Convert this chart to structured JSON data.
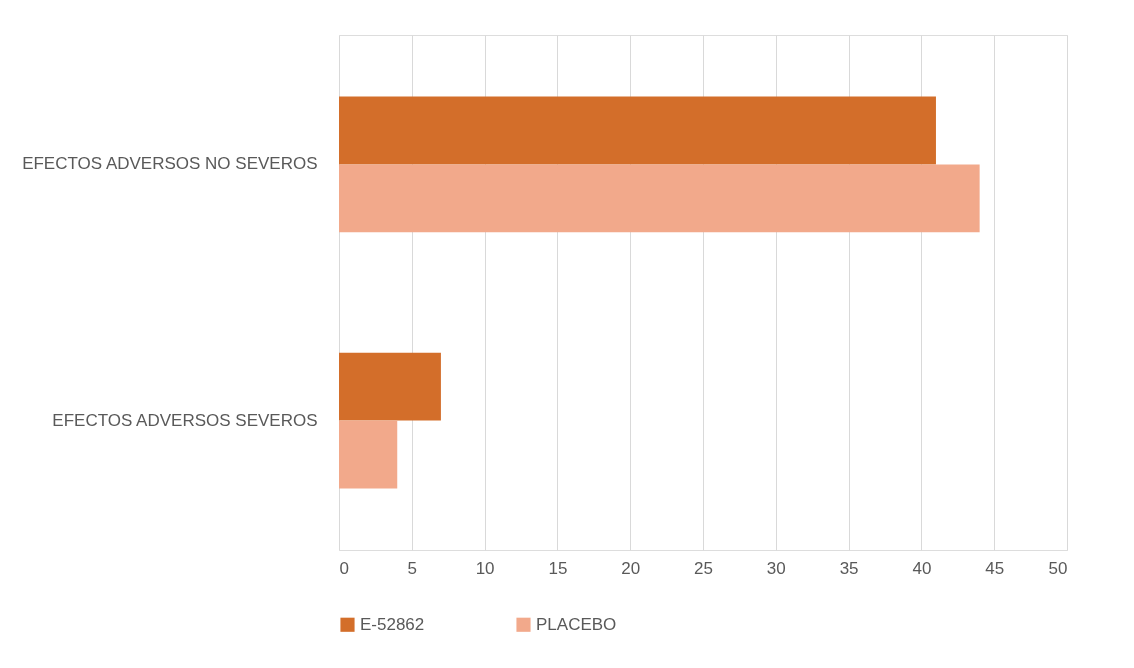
{
  "chart_data": {
    "type": "bar",
    "orientation": "horizontal",
    "categories": [
      "EFECTOS ADVERSOS NO SEVEROS",
      "EFECTOS ADVERSOS SEVEROS"
    ],
    "series": [
      {
        "name": "E-52862",
        "color": "#d36e2a",
        "values": [
          41,
          7
        ]
      },
      {
        "name": "PLACEBO",
        "color": "#f2a98b",
        "values": [
          44,
          4
        ]
      }
    ],
    "xlim": [
      0,
      50
    ],
    "xticks": [
      0,
      5,
      10,
      15,
      20,
      25,
      30,
      35,
      40,
      45,
      50
    ],
    "grid": "x",
    "legend": "bottom"
  }
}
